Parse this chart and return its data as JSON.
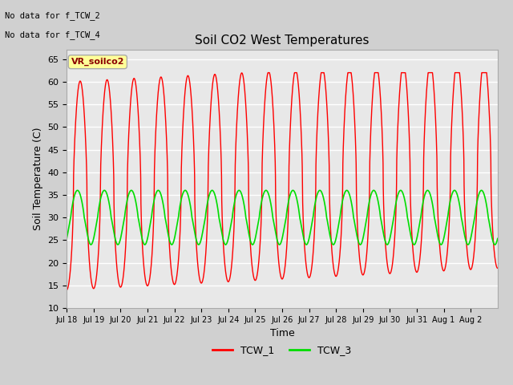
{
  "title": "Soil CO2 West Temperatures",
  "xlabel": "Time",
  "ylabel": "Soil Temperature (C)",
  "ylim": [
    10,
    67
  ],
  "yticks": [
    10,
    15,
    20,
    25,
    30,
    35,
    40,
    45,
    50,
    55,
    60,
    65
  ],
  "fig_bg_color": "#d0d0d0",
  "plot_bg_color": "#e8e8e8",
  "no_data_text": [
    "No data for f_TCW_2",
    "No data for f_TCW_4"
  ],
  "legend_label_text": "VR_soilco2",
  "legend_label_bg": "#ffff99",
  "legend_label_border": "#aaaaaa",
  "line1_color": "#ff0000",
  "line2_color": "#00dd00",
  "line1_label": "TCW_1",
  "line2_label": "TCW_3",
  "xtick_labels": [
    "Jul 18",
    "Jul 19",
    "Jul 20",
    "Jul 21",
    "Jul 22",
    "Jul 23",
    "Jul 24",
    "Jul 25",
    "Jul 26",
    "Jul 27",
    "Jul 28",
    "Jul 29",
    "Jul 30",
    "Jul 31",
    "Aug 1",
    "Aug 2"
  ]
}
